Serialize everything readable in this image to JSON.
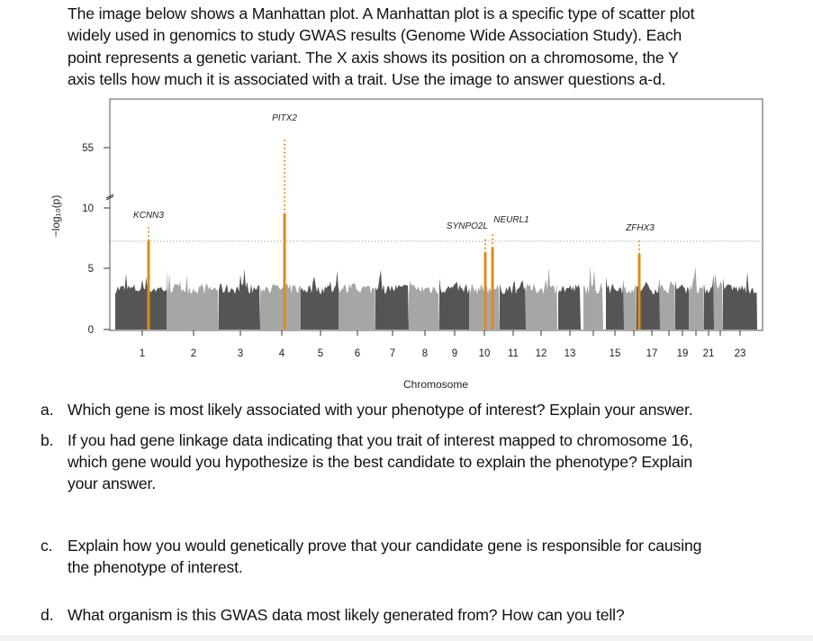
{
  "intro": {
    "lines": [
      "The image below shows a Manhattan plot. A Manhattan plot is a specific type of scatter plot",
      "widely used in genomics to study GWAS results (Genome Wide Association Study). Each",
      "point represents a genetic variant. The X axis shows its position on a chromosome, the Y",
      "axis tells how much it is associated with a trait. Use the image to answer questions a-d."
    ]
  },
  "chart_data": {
    "type": "scatter",
    "xlabel": "Chromosome",
    "ylabel": "−log₁₀(p)",
    "y_ticks": [
      "0",
      "5",
      "10",
      "55"
    ],
    "y_axis_break": "between 10 and 55",
    "significance_threshold": 7.3,
    "x_tick_labels": [
      "1",
      "2",
      "3",
      "4",
      "5",
      "6",
      "7",
      "8",
      "9",
      "10",
      "11",
      "12",
      "13",
      "",
      "15",
      "",
      "17",
      "",
      "19",
      "",
      "21",
      "",
      "23"
    ],
    "chromosomes": [
      "1",
      "2",
      "3",
      "4",
      "5",
      "6",
      "7",
      "8",
      "9",
      "10",
      "11",
      "12",
      "13",
      "14",
      "15",
      "16",
      "17",
      "18",
      "19",
      "20",
      "21",
      "22",
      "23"
    ],
    "background_colors": [
      "#555555",
      "#a6a6a6"
    ],
    "highlight_color": "#e08a1e",
    "highlighted_loci": [
      {
        "gene": "KCNN3",
        "chromosome": "1",
        "peak": 8.5
      },
      {
        "gene": "PITX2",
        "chromosome": "4",
        "peak": 62
      },
      {
        "gene": "SYNPO2L",
        "chromosome": "10",
        "peak": 7.5
      },
      {
        "gene": "NEURL1",
        "chromosome": "10",
        "peak": 7.9
      },
      {
        "gene": "ZFHX3",
        "chromosome": "16",
        "peak": 7.4
      }
    ],
    "grid": false,
    "legend": "none"
  },
  "questions": [
    {
      "letter": "a.",
      "lines": [
        "Which gene is most likely associated with your phenotype of interest? Explain your answer."
      ]
    },
    {
      "letter": "b.",
      "lines": [
        "If you had gene linkage data indicating that you trait of interest mapped to chromosome 16,",
        "which gene would you hypothesize is the best candidate to explain the phenotype? Explain",
        "your answer."
      ]
    },
    {
      "letter": "c.",
      "lines": [
        "Explain how you would genetically prove that your candidate gene is responsible for causing",
        "the phenotype of interest."
      ]
    },
    {
      "letter": "d.",
      "lines": [
        "What organism is this GWAS data most likely generated from? How can you tell?"
      ]
    }
  ]
}
